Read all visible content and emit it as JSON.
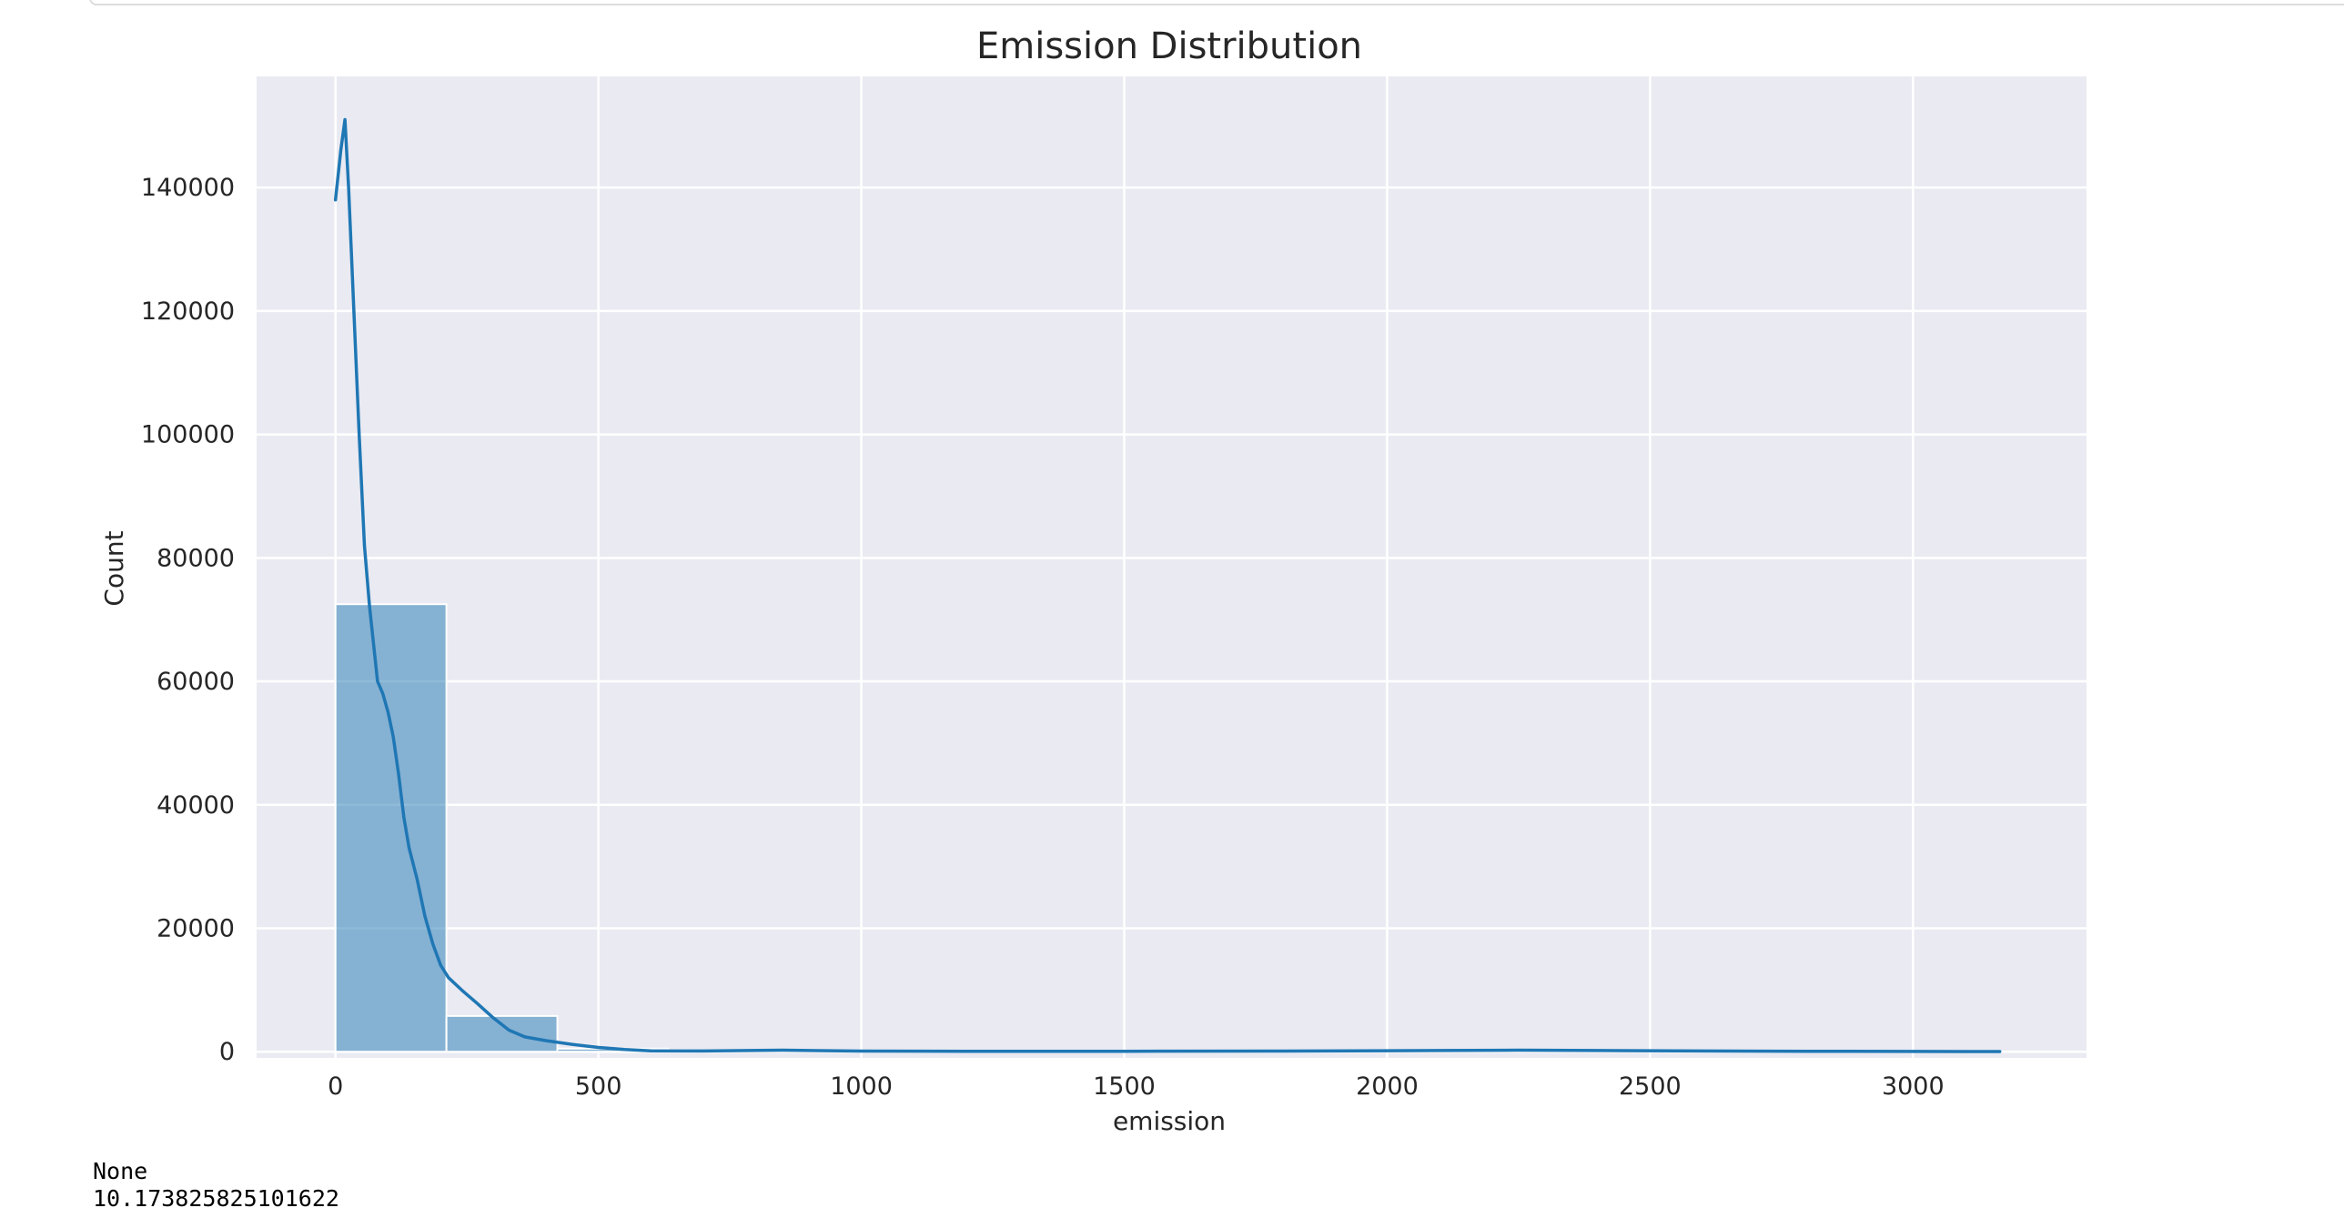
{
  "output": {
    "lines": [
      "None",
      "10.173825825101622"
    ]
  },
  "colors": {
    "plot_background": "#eaeaf2",
    "grid": "#ffffff",
    "bar_fill": "#1f77b4",
    "bar_opacity": 0.5,
    "kde_line": "#1f77b4",
    "text": "#262626"
  },
  "chart_data": {
    "type": "bar",
    "style": "histogram with kde line",
    "title": "Emission Distribution",
    "xlabel": "emission",
    "ylabel": "Count",
    "xlim": [
      -150,
      3330
    ],
    "ylim": [
      -1000,
      158000
    ],
    "xticks": [
      0,
      500,
      1000,
      1500,
      2000,
      2500,
      3000
    ],
    "yticks": [
      0,
      20000,
      40000,
      60000,
      80000,
      100000,
      120000,
      140000
    ],
    "grid": true,
    "bins": [
      {
        "x0": 0,
        "x1": 211,
        "count": 72500
      },
      {
        "x0": 211,
        "x1": 422,
        "count": 5800
      },
      {
        "x0": 422,
        "x1": 633,
        "count": 500
      },
      {
        "x0": 633,
        "x1": 844,
        "count": 200
      },
      {
        "x0": 844,
        "x1": 1055,
        "count": 150
      },
      {
        "x0": 1055,
        "x1": 1266,
        "count": 80
      },
      {
        "x0": 1266,
        "x1": 1477,
        "count": 60
      },
      {
        "x0": 1477,
        "x1": 1688,
        "count": 50
      },
      {
        "x0": 1688,
        "x1": 1899,
        "count": 50
      },
      {
        "x0": 1899,
        "x1": 2110,
        "count": 80
      },
      {
        "x0": 2110,
        "x1": 2321,
        "count": 120
      },
      {
        "x0": 2321,
        "x1": 2532,
        "count": 90
      },
      {
        "x0": 2532,
        "x1": 2743,
        "count": 40
      },
      {
        "x0": 2743,
        "x1": 2954,
        "count": 20
      },
      {
        "x0": 2954,
        "x1": 3165,
        "count": 10
      }
    ],
    "kde": {
      "x": [
        0,
        10,
        18,
        25,
        35,
        45,
        55,
        65,
        80,
        90,
        100,
        110,
        120,
        130,
        140,
        155,
        170,
        185,
        200,
        215,
        240,
        270,
        300,
        330,
        360,
        400,
        450,
        500,
        550,
        600,
        700,
        850,
        1000,
        1200,
        1500,
        1800,
        2100,
        2250,
        2400,
        2600,
        2800,
        3000,
        3165
      ],
      "y": [
        138000,
        146000,
        151000,
        140000,
        120000,
        100000,
        82000,
        72000,
        60000,
        58000,
        55000,
        51000,
        45000,
        38000,
        33000,
        28000,
        22000,
        17500,
        14000,
        12000,
        10000,
        7800,
        5500,
        3500,
        2400,
        1800,
        1200,
        700,
        350,
        150,
        120,
        250,
        100,
        80,
        80,
        100,
        200,
        250,
        200,
        120,
        80,
        50,
        30
      ]
    }
  }
}
